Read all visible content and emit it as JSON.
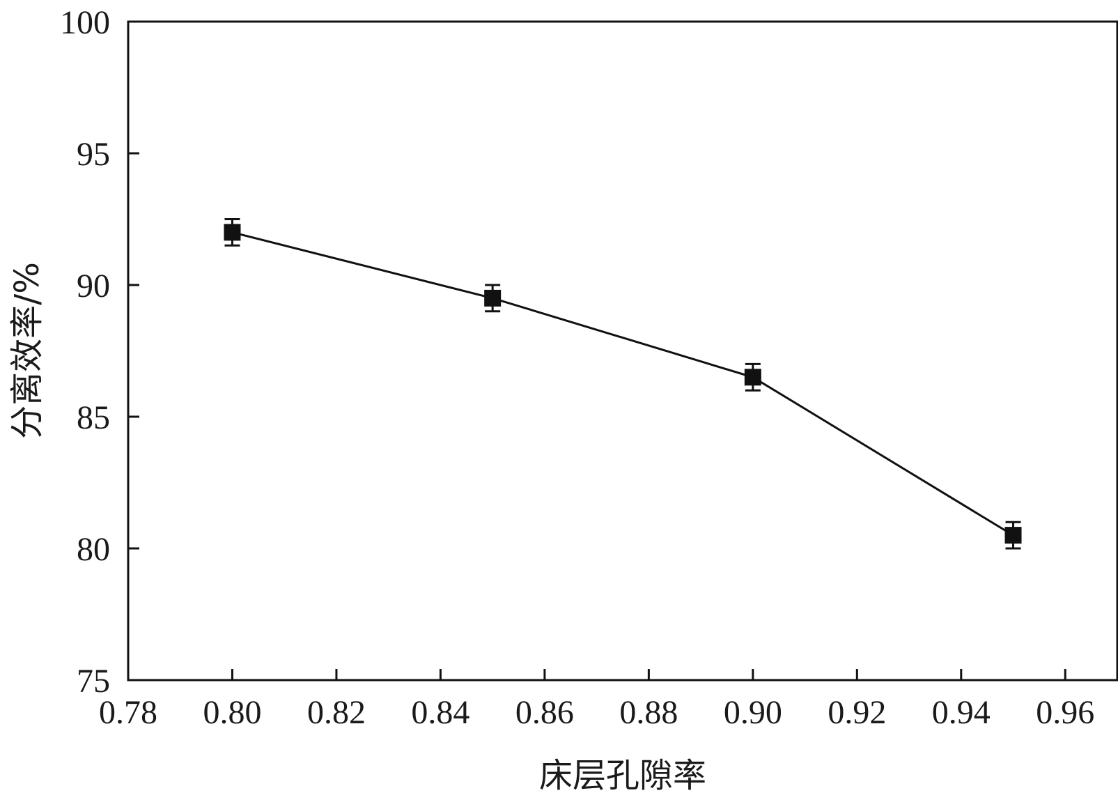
{
  "chart_data": {
    "type": "line",
    "title": "",
    "xlabel": "床层孔隙率",
    "ylabel": "分离效率/%",
    "xlim": [
      0.78,
      0.97
    ],
    "ylim": [
      75,
      100
    ],
    "x_ticks": [
      "0.78",
      "0.80",
      "0.82",
      "0.84",
      "0.86",
      "0.88",
      "0.90",
      "0.92",
      "0.94",
      "0.96"
    ],
    "y_ticks": [
      "75",
      "80",
      "85",
      "90",
      "95",
      "100"
    ],
    "grid": false,
    "legend": "none",
    "series": [
      {
        "marker": "square",
        "color": "#111111",
        "x": [
          0.8,
          0.85,
          0.9,
          0.95
        ],
        "y": [
          92.0,
          89.5,
          86.5,
          80.5
        ],
        "error": [
          0.5,
          0.5,
          0.5,
          0.5
        ]
      }
    ]
  }
}
